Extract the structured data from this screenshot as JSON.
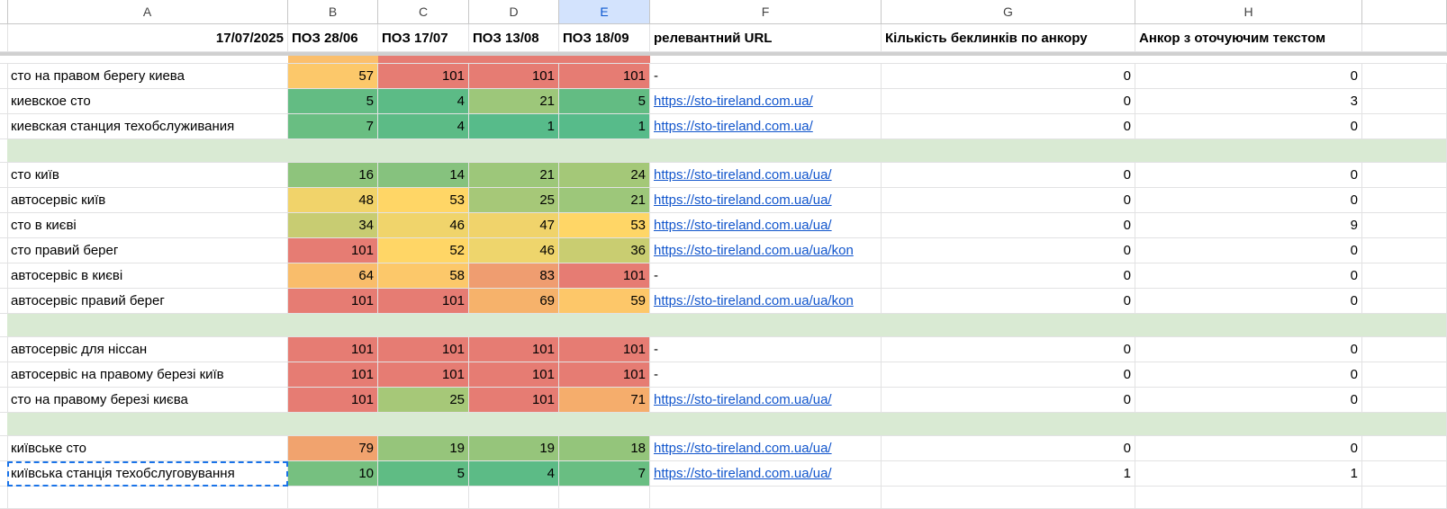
{
  "column_headers": [
    "A",
    "B",
    "C",
    "D",
    "E",
    "F",
    "G",
    "H"
  ],
  "header_row": {
    "date": "17/07/2025",
    "positions": [
      "ПОЗ 28/06",
      "ПОЗ 17/07",
      "ПОЗ 13/08",
      "ПОЗ 18/09"
    ],
    "url": "релевантний URL",
    "backlinks": "Кількість беклинків по анкору",
    "anchor": "Анкор з оточуючим текстом"
  },
  "rows": [
    {
      "keyword": "сто на правом берегу киева",
      "positions": [
        57,
        101,
        101,
        101
      ],
      "colors": [
        "#fcc86a",
        "#e67c73",
        "#e67c73",
        "#e67c73"
      ],
      "url": "-",
      "backlinks": 0,
      "anchor": 0
    },
    {
      "keyword": "киевское сто",
      "positions": [
        5,
        4,
        21,
        5
      ],
      "colors": [
        "#63bc83",
        "#5cbb86",
        "#9dc77a",
        "#63bc83"
      ],
      "url": "https://sto-tireland.com.ua/",
      "backlinks": 0,
      "anchor": 3
    },
    {
      "keyword": "киевская станция техобслуживания",
      "positions": [
        7,
        4,
        1,
        1
      ],
      "colors": [
        "#69be82",
        "#5cbb86",
        "#57bb8a",
        "#57bb8a"
      ],
      "url": "https://sto-tireland.com.ua/",
      "backlinks": 0,
      "anchor": 0
    },
    null,
    {
      "keyword": "сто київ",
      "positions": [
        16,
        14,
        21,
        24
      ],
      "colors": [
        "#8ec47c",
        "#86c27e",
        "#9dc77a",
        "#a4c878"
      ],
      "url": "https://sto-tireland.com.ua/ua/",
      "backlinks": 0,
      "anchor": 0
    },
    {
      "keyword": "автосервіс київ",
      "positions": [
        48,
        53,
        25,
        21
      ],
      "colors": [
        "#f1d36a",
        "#ffd666",
        "#a6c878",
        "#9dc77a"
      ],
      "url": "https://sto-tireland.com.ua/ua/",
      "backlinks": 0,
      "anchor": 0
    },
    {
      "keyword": "сто в києві",
      "positions": [
        34,
        46,
        47,
        53
      ],
      "colors": [
        "#c8cc72",
        "#f0d46b",
        "#f0d36b",
        "#ffd666"
      ],
      "url": "https://sto-tireland.com.ua/ua/",
      "backlinks": 0,
      "anchor": 9
    },
    {
      "keyword": "сто правий берег",
      "positions": [
        101,
        52,
        46,
        36
      ],
      "colors": [
        "#e67c73",
        "#ffd666",
        "#eed56c",
        "#c9cd71"
      ],
      "url": "https://sto-tireland.com.ua/ua/kon",
      "backlinks": 0,
      "anchor": 0
    },
    {
      "keyword": "автосервіс в києві",
      "positions": [
        64,
        58,
        83,
        101
      ],
      "colors": [
        "#f9bd6b",
        "#fcc86a",
        "#ef9d70",
        "#e67c73"
      ],
      "url": "-",
      "backlinks": 0,
      "anchor": 0
    },
    {
      "keyword": "автосервіс правий берег",
      "positions": [
        101,
        101,
        69,
        59
      ],
      "colors": [
        "#e67c73",
        "#e67c73",
        "#f6b26b",
        "#fdc769"
      ],
      "url": "https://sto-tireland.com.ua/ua/kon",
      "backlinks": 0,
      "anchor": 0
    },
    null,
    {
      "keyword": "автосервіс для ніссан",
      "positions": [
        101,
        101,
        101,
        101
      ],
      "colors": [
        "#e67c73",
        "#e67c73",
        "#e67c73",
        "#e67c73"
      ],
      "url": "-",
      "backlinks": 0,
      "anchor": 0
    },
    {
      "keyword": "автосервіс на правому березі київ",
      "positions": [
        101,
        101,
        101,
        101
      ],
      "colors": [
        "#e67c73",
        "#e67c73",
        "#e67c73",
        "#e67c73"
      ],
      "url": "-",
      "backlinks": 0,
      "anchor": 0
    },
    {
      "keyword": "сто на правому березі києва",
      "positions": [
        101,
        25,
        101,
        71
      ],
      "colors": [
        "#e67c73",
        "#a6c878",
        "#e67c73",
        "#f5ad6c"
      ],
      "url": "https://sto-tireland.com.ua/ua/",
      "backlinks": 0,
      "anchor": 0
    },
    null,
    {
      "keyword": "київське сто",
      "positions": [
        79,
        19,
        19,
        18
      ],
      "colors": [
        "#f1a36e",
        "#96c57b",
        "#96c57b",
        "#94c57b"
      ],
      "url": "https://sto-tireland.com.ua/ua/",
      "backlinks": 0,
      "anchor": 0
    },
    {
      "keyword": "київська станція техобслуговування",
      "positions": [
        10,
        5,
        4,
        7
      ],
      "colors": [
        "#76c080",
        "#5fbc84",
        "#5cbb86",
        "#69be82"
      ],
      "url": "https://sto-tireland.com.ua/ua/",
      "backlinks": 1,
      "anchor": 1
    }
  ]
}
